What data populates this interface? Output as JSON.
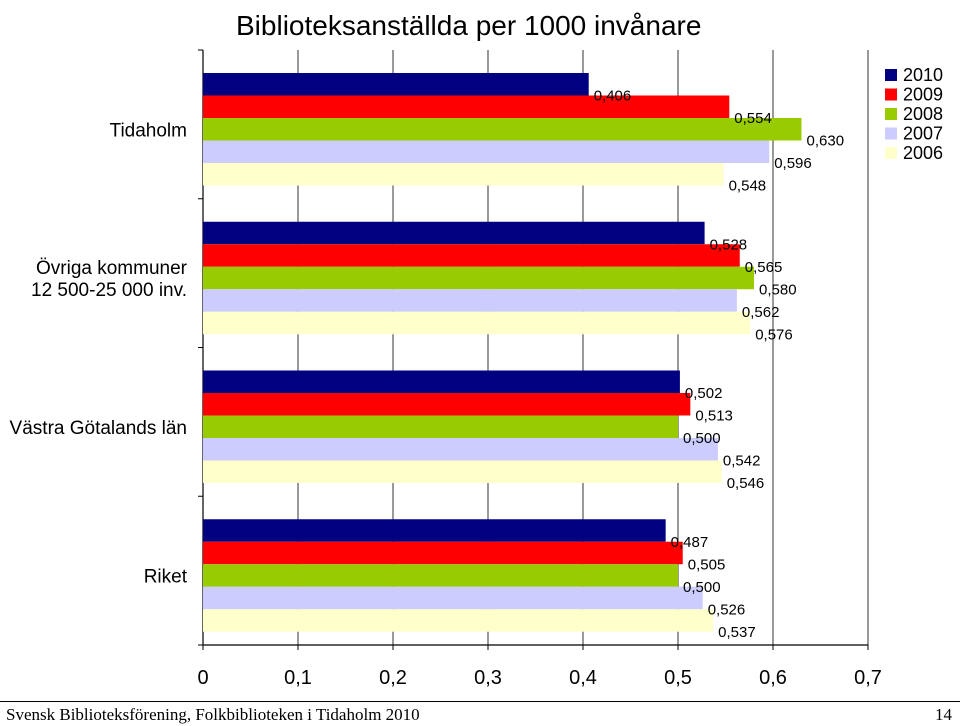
{
  "title": "Biblioteksanställda per 1000 invånare",
  "footer": {
    "left": "Svensk Biblioteksförening, Folkbiblioteken i Tidaholm 2010",
    "page": "14"
  },
  "chart_data": {
    "type": "bar",
    "orientation": "horizontal",
    "title": "Biblioteksanställda per 1000 invånare",
    "categories": [
      "Tidaholm",
      "Övriga kommuner 12 500-25 000 inv.",
      "Västra Götalands län",
      "Riket"
    ],
    "category_lines": [
      [
        "Tidaholm"
      ],
      [
        "Övriga kommuner",
        "12 500-25 000 inv."
      ],
      [
        "Västra Götalands län"
      ],
      [
        "Riket"
      ]
    ],
    "series": [
      {
        "name": "2010",
        "color": "#000080",
        "values": [
          0.406,
          0.528,
          0.502,
          0.487
        ],
        "labels": [
          "0,406",
          "0,528",
          "0,502",
          "0,487"
        ]
      },
      {
        "name": "2009",
        "color": "#ff0000",
        "values": [
          0.554,
          0.565,
          0.513,
          0.505
        ],
        "labels": [
          "0,554",
          "0,565",
          "0,513",
          "0,505"
        ]
      },
      {
        "name": "2008",
        "color": "#99cc00",
        "values": [
          0.63,
          0.58,
          0.5,
          0.5
        ],
        "labels": [
          "0,630",
          "0,580",
          "0,500",
          "0,500"
        ]
      },
      {
        "name": "2007",
        "color": "#ccccff",
        "values": [
          0.596,
          0.562,
          0.542,
          0.526
        ],
        "labels": [
          "0,596",
          "0,562",
          "0,542",
          "0,526"
        ]
      },
      {
        "name": "2006",
        "color": "#ffffcc",
        "values": [
          0.548,
          0.576,
          0.546,
          0.537
        ],
        "labels": [
          "0,548",
          "0,576",
          "0,546",
          "0,537"
        ]
      }
    ],
    "xlim": [
      0,
      0.7
    ],
    "xticks": [
      "0",
      "0,1",
      "0,2",
      "0,3",
      "0,4",
      "0,5",
      "0,6",
      "0,7"
    ],
    "grid": true,
    "legend": "top-right"
  }
}
